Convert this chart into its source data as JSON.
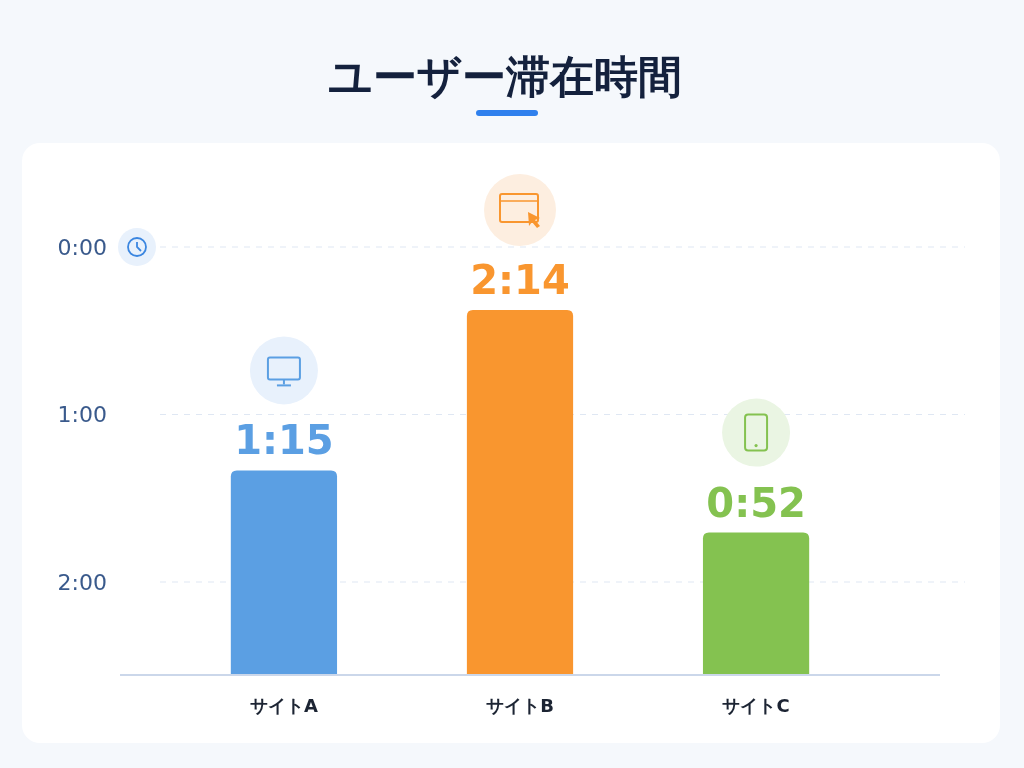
{
  "chart_data": {
    "type": "bar",
    "title": "ユーザー滞在時間",
    "categories": [
      "サイトA",
      "サイトB",
      "サイトC"
    ],
    "values": [
      1.25,
      2.23,
      0.87
    ],
    "colors": [
      "#5b9fe3",
      "#f9962f",
      "#84c250"
    ],
    "value_labels": [
      "1:15",
      "2:14",
      "0:52"
    ],
    "y2lim": [
      2,
      0
    ],
    "y2ticks": [
      {
        "value": 0,
        "label": "0:00"
      },
      {
        "value": 1,
        "label": "1:00"
      },
      {
        "value": 2,
        "label": "2:00"
      }
    ],
    "grid": "y"
  }
}
